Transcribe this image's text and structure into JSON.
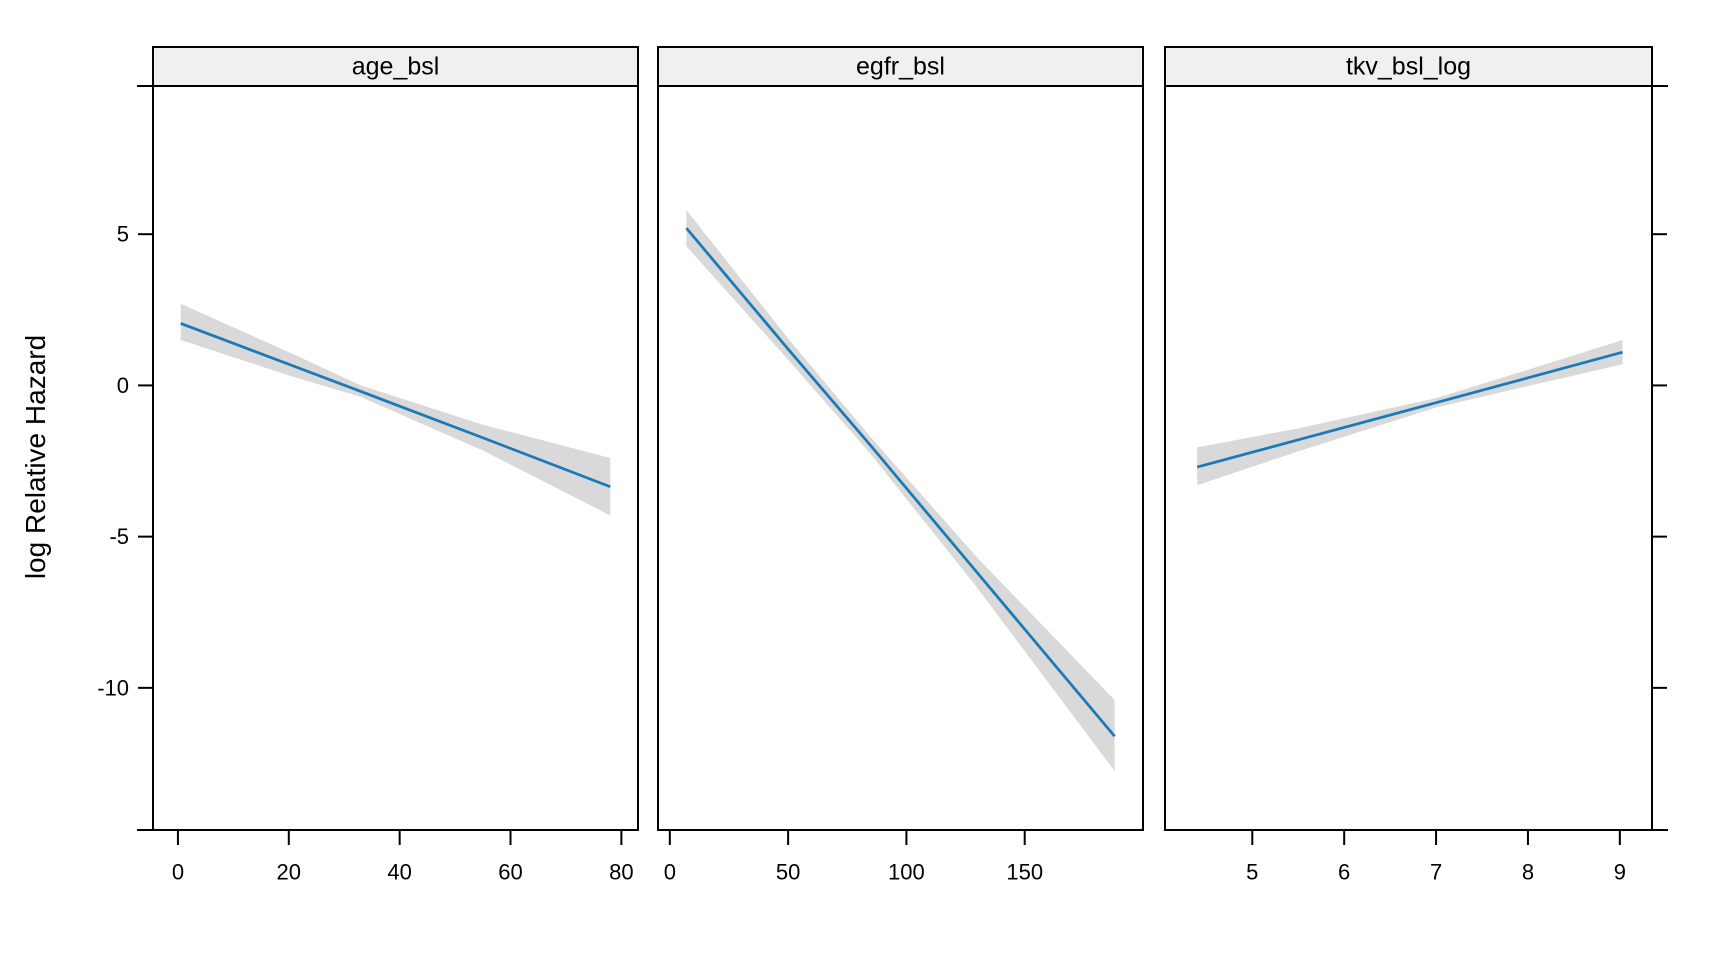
{
  "figure": {
    "background": "#ffffff"
  },
  "style": {
    "line_color": "#1b79b7",
    "band_color": "#d9d9d9",
    "strip_fill": "#f0f0f0",
    "border_color": "#000000",
    "text_color": "#000000"
  },
  "chart_data": {
    "type": "line",
    "title": "",
    "ylabel": "log Relative Hazard",
    "xlabel": "",
    "grid": "off",
    "legend": "none",
    "y_ticks": [
      5,
      0,
      -5,
      -10
    ],
    "ylim": [
      -14.7,
      9.9
    ],
    "panels": [
      {
        "title": "age_bsl",
        "xlim": [
          -4.5,
          83
        ],
        "x_ticks": [
          0,
          20,
          40,
          60,
          80
        ],
        "series": "fitted log relative hazard with confidence band",
        "x": [
          0.5,
          20,
          33,
          55,
          78
        ],
        "fit": [
          2.05,
          0.7,
          -0.2,
          -1.73,
          -3.35
        ],
        "upper": [
          2.7,
          1.1,
          0.0,
          -1.3,
          -2.4
        ],
        "lower": [
          1.5,
          0.33,
          -0.38,
          -2.15,
          -4.3
        ]
      },
      {
        "title": "egfr_bsl",
        "xlim": [
          -5,
          200
        ],
        "x_ticks": [
          0,
          50,
          100,
          150
        ],
        "series": "fitted log relative hazard with confidence band",
        "x": [
          7,
          50,
          85,
          130,
          188
        ],
        "fit": [
          5.2,
          1.2,
          -2.0,
          -6.2,
          -11.6
        ],
        "upper": [
          5.8,
          1.55,
          -1.72,
          -5.7,
          -10.4
        ],
        "lower": [
          4.6,
          0.85,
          -2.28,
          -6.7,
          -12.75
        ]
      },
      {
        "title": "tkv_bsl_log",
        "xlim": [
          4.05,
          9.35
        ],
        "x_ticks": [
          5,
          6,
          7,
          8,
          9
        ],
        "series": "fitted log relative hazard with confidence band",
        "x": [
          4.4,
          5.5,
          7.0,
          8.0,
          9.03
        ],
        "fit": [
          -2.7,
          -1.8,
          -0.57,
          0.25,
          1.1
        ],
        "upper": [
          -2.05,
          -1.42,
          -0.42,
          0.52,
          1.5
        ],
        "lower": [
          -3.3,
          -2.18,
          -0.73,
          -0.02,
          0.7
        ]
      }
    ]
  }
}
